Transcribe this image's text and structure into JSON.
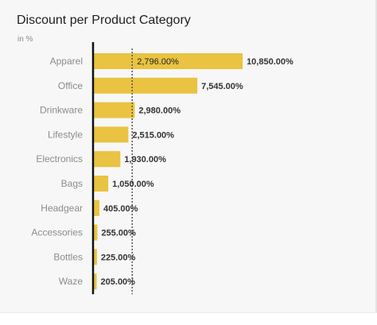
{
  "chart_data": {
    "type": "bar",
    "orientation": "horizontal",
    "title": "Discount per Product Category",
    "subtitle": "in %",
    "categories": [
      "Apparel",
      "Office",
      "Drinkware",
      "Lifestyle",
      "Electronics",
      "Bags",
      "Headgear",
      "Accessories",
      "Bottles",
      "Waze"
    ],
    "values": [
      10850,
      7545,
      2980,
      2515,
      1930,
      1050,
      405,
      255,
      225,
      205
    ],
    "value_labels": [
      "10,850.00%",
      "7,545.00%",
      "2,980.00%",
      "2,515.00%",
      "1,930.00%",
      "1,050.00%",
      "405.00%",
      "255.00%",
      "225.00%",
      "205.00%"
    ],
    "reference_line": {
      "value": 2796,
      "label": "2,796.00%",
      "style": "dotted"
    },
    "xlim": [
      0,
      11600
    ],
    "grid": false,
    "legend": "none",
    "colors": {
      "bar": "#e9c341",
      "axis": "#111111",
      "reference_line": "#555555",
      "card_background": "#f7f7f7"
    }
  }
}
